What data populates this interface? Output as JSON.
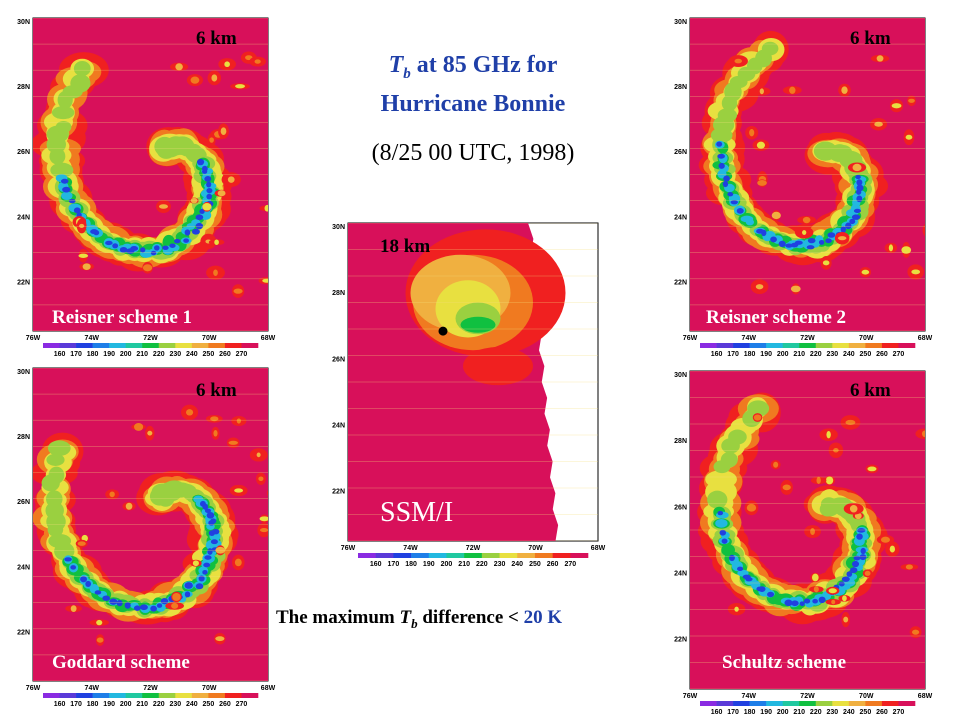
{
  "title": {
    "tb_symbol": "T",
    "tb_subscript": "b",
    "line1_rest": " at 85 GHz for",
    "line2": "Hurricane Bonnie"
  },
  "subtitle": "(8/25 00 UTC, 1998)",
  "note": {
    "prefix": "The maximum ",
    "tb_symbol": "T",
    "tb_subscript": "b",
    "middle": " difference < ",
    "value": "20 K"
  },
  "axes": {
    "lat_labels": [
      "30N",
      "28N",
      "26N",
      "24N",
      "22N"
    ],
    "lon_labels": [
      "76W",
      "74W",
      "72W",
      "70W",
      "68W"
    ]
  },
  "colorbar": {
    "ticks": [
      "160",
      "170",
      "180",
      "190",
      "200",
      "210",
      "220",
      "230",
      "240",
      "250",
      "260",
      "270"
    ],
    "colors": [
      "#8a2be2",
      "#5a3ad8",
      "#2040e0",
      "#1e7ee8",
      "#22b8e0",
      "#20c8a0",
      "#10c040",
      "#9ad040",
      "#e8e040",
      "#f0b040",
      "#f07a20",
      "#f02020",
      "#d8105a"
    ]
  },
  "panels": [
    {
      "id": "reisner1",
      "resolution": "6 km",
      "label": "Reisner scheme 1"
    },
    {
      "id": "reisner2",
      "resolution": "6 km",
      "label": "Reisner scheme 2"
    },
    {
      "id": "goddard",
      "resolution": "6 km",
      "label": "Goddard scheme"
    },
    {
      "id": "schultz",
      "resolution": "6 km",
      "label": "Schultz scheme"
    },
    {
      "id": "ssmi",
      "resolution": "18 km",
      "label": "SSM/I"
    }
  ]
}
